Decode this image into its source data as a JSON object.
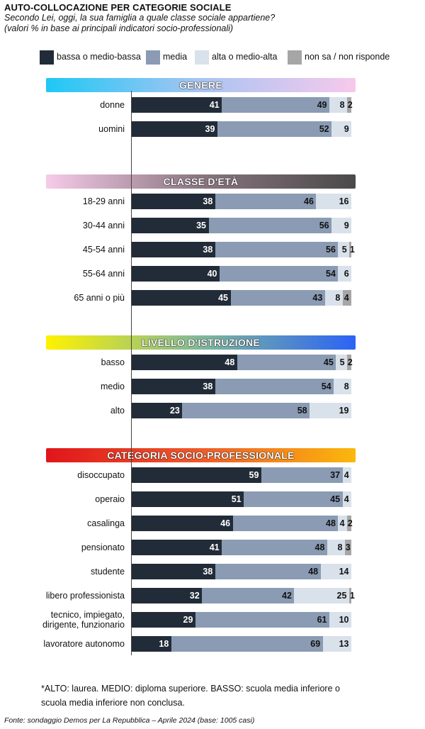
{
  "title": "AUTO-COLLOCAZIONE PER CATEGORIE SOCIALE",
  "subtitle_lines": [
    "Secondo Lei, oggi, la sua famiglia a quale classe sociale appartiene?",
    "(valori % in base ai principali indicatori socio-professionali)"
  ],
  "legend": [
    {
      "label": "bassa o medio-bassa",
      "color": "#222c38"
    },
    {
      "label": "media",
      "color": "#8a9bb3"
    },
    {
      "label": "alta o medio-alta",
      "color": "#d9e1ea"
    },
    {
      "label": "non sa / non risponde",
      "color": "#a6a6a6"
    }
  ],
  "chart_data": {
    "type": "bar",
    "orientation": "horizontal",
    "stacked": true,
    "unit": "%",
    "series": [
      {
        "name": "bassa o medio-bassa",
        "color": "#222c38"
      },
      {
        "name": "media",
        "color": "#8a9bb3"
      },
      {
        "name": "alta o medio-alta",
        "color": "#d9e1ea"
      },
      {
        "name": "non sa / non risponde",
        "color": "#a6a6a6"
      }
    ],
    "groups": [
      {
        "title": "GENERE",
        "gradient": [
          "#1ec8f5",
          "#a9c4f2",
          "#f7c9ec"
        ],
        "rows": [
          {
            "label": [
              "donne"
            ],
            "values": [
              41,
              49,
              8,
              2
            ]
          },
          {
            "label": [
              "uomini"
            ],
            "values": [
              39,
              52,
              9,
              0
            ]
          }
        ]
      },
      {
        "title": "CLASSE D'ETÀ",
        "gradient": [
          "#f6cbe9",
          "#8a7580",
          "#4a4a4a"
        ],
        "rows": [
          {
            "label": [
              "18-29 anni"
            ],
            "values": [
              38,
              46,
              16,
              0
            ]
          },
          {
            "label": [
              "30-44 anni"
            ],
            "values": [
              35,
              56,
              9,
              0
            ]
          },
          {
            "label": [
              "45-54 anni"
            ],
            "values": [
              38,
              56,
              5,
              1
            ]
          },
          {
            "label": [
              "55-64 anni"
            ],
            "values": [
              40,
              54,
              6,
              0
            ]
          },
          {
            "label": [
              "65 anni o più"
            ],
            "values": [
              45,
              43,
              8,
              4
            ]
          }
        ]
      },
      {
        "title": "LIVELLO D'ISTRUZIONE",
        "gradient": [
          "#fff200",
          "#7fb89a",
          "#2b63f5"
        ],
        "rows": [
          {
            "label": [
              "basso"
            ],
            "values": [
              48,
              45,
              5,
              2
            ]
          },
          {
            "label": [
              "medio"
            ],
            "values": [
              38,
              54,
              8,
              0
            ]
          },
          {
            "label": [
              "alto"
            ],
            "values": [
              23,
              58,
              19,
              0
            ]
          }
        ]
      },
      {
        "title": "CATEGORIA SOCIO-PROFESSIONALE",
        "gradient": [
          "#e0151b",
          "#f05a28",
          "#fbb80c"
        ],
        "rows": [
          {
            "label": [
              "disoccupato"
            ],
            "values": [
              59,
              37,
              4,
              0
            ]
          },
          {
            "label": [
              "operaio"
            ],
            "values": [
              51,
              45,
              4,
              0
            ]
          },
          {
            "label": [
              "casalinga"
            ],
            "values": [
              46,
              48,
              4,
              2
            ]
          },
          {
            "label": [
              "pensionato"
            ],
            "values": [
              41,
              48,
              8,
              3
            ]
          },
          {
            "label": [
              "studente"
            ],
            "values": [
              38,
              48,
              14,
              0
            ]
          },
          {
            "label": [
              "libero professionista"
            ],
            "values": [
              32,
              42,
              25,
              1
            ]
          },
          {
            "label": [
              "tecnico, impiegato,",
              "dirigente, funzionario"
            ],
            "values": [
              29,
              61,
              10,
              0
            ]
          },
          {
            "label": [
              "lavoratore autonomo"
            ],
            "values": [
              18,
              69,
              13,
              0
            ]
          }
        ]
      }
    ]
  },
  "footnote": "*ALTO: laurea. MEDIO: diploma superiore. BASSO: scuola media inferiore o scuola media inferiore non conclusa.",
  "source": "Fonte: sondaggio Demos per La Repubblica – Aprile 2024 (base: 1005 casi)"
}
